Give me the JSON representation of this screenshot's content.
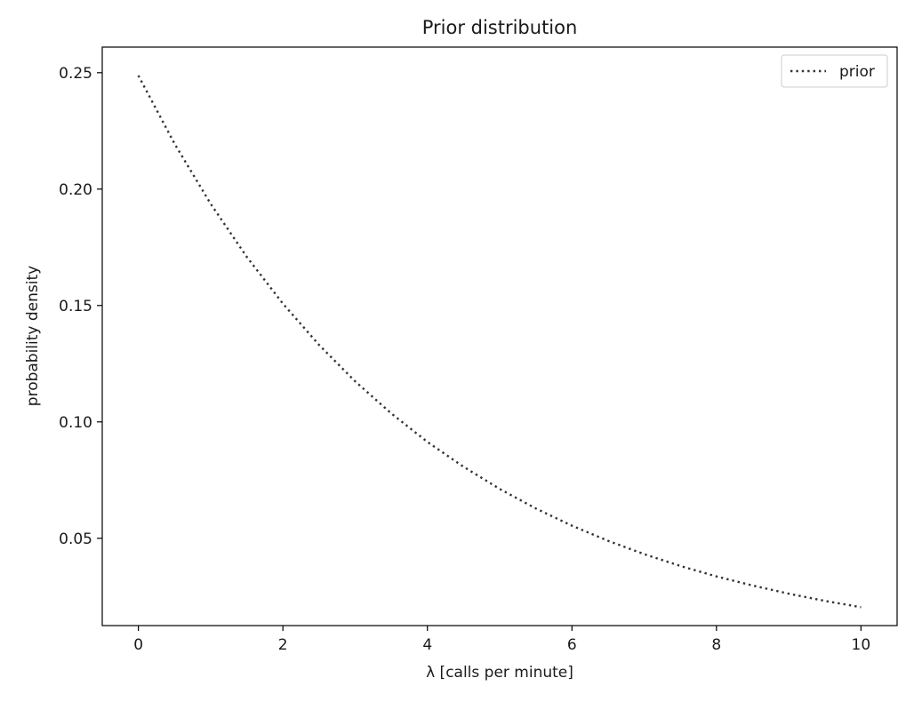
{
  "chart_data": {
    "type": "line",
    "title": "Prior distribution",
    "xlabel": "λ [calls per minute]",
    "ylabel": "probability density",
    "xlim": [
      -0.5,
      10.5
    ],
    "ylim": [
      0.0125,
      0.261
    ],
    "x_ticks": [
      {
        "value": 0,
        "label": "0"
      },
      {
        "value": 2,
        "label": "2"
      },
      {
        "value": 4,
        "label": "4"
      },
      {
        "value": 6,
        "label": "6"
      },
      {
        "value": 8,
        "label": "8"
      },
      {
        "value": 10,
        "label": "10"
      }
    ],
    "y_ticks": [
      {
        "value": 0.05,
        "label": "0.05"
      },
      {
        "value": 0.1,
        "label": "0.10"
      },
      {
        "value": 0.15,
        "label": "0.15"
      },
      {
        "value": 0.2,
        "label": "0.20"
      },
      {
        "value": 0.25,
        "label": "0.25"
      }
    ],
    "grid": false,
    "legend": {
      "placement": "top-right"
    },
    "series": [
      {
        "name": "prior",
        "color": "#333333",
        "line_style": "dotted",
        "x": [
          0,
          0.5,
          1,
          1.5,
          2,
          2.5,
          3,
          3.5,
          4,
          4.5,
          5,
          5.5,
          6,
          6.5,
          7,
          7.5,
          8,
          8.5,
          9,
          9.5,
          10
        ],
        "y": [
          0.2488,
          0.2195,
          0.1937,
          0.1709,
          0.1508,
          0.1331,
          0.1174,
          0.1036,
          0.0914,
          0.0807,
          0.0712,
          0.0628,
          0.0554,
          0.0489,
          0.0432,
          0.0381,
          0.0336,
          0.0297,
          0.0262,
          0.0231,
          0.0204
        ]
      }
    ]
  }
}
